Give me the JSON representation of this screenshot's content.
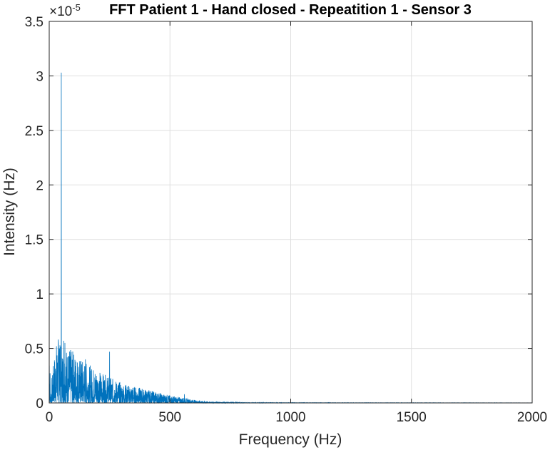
{
  "chart_data": {
    "type": "line",
    "title": "FFT Patient 1 - Hand closed - Repeatition 1 - Sensor 3",
    "xlabel": "Frequency (Hz)",
    "ylabel": "Intensity (Hz)",
    "y_exponent_base": "×10",
    "y_exponent_power": "-5",
    "xlim": [
      0,
      2000
    ],
    "ylim": [
      0,
      3.5
    ],
    "xticks": [
      0,
      500,
      1000,
      1500,
      2000
    ],
    "xtick_labels": [
      "0",
      "500",
      "1000",
      "1500",
      "2000"
    ],
    "yticks": [
      0,
      0.5,
      1,
      1.5,
      2,
      2.5,
      3,
      3.5
    ],
    "ytick_labels": [
      "0",
      "0.5",
      "1",
      "1.5",
      "2",
      "2.5",
      "3",
      "3.5"
    ],
    "grid": true,
    "series": [
      {
        "color": "#0072BD",
        "envelope_x": [
          0,
          5,
          10,
          20,
          30,
          40,
          50,
          60,
          80,
          100,
          125,
          150,
          175,
          200,
          225,
          250,
          275,
          300,
          350,
          400,
          450,
          500,
          550,
          600,
          650,
          700,
          800,
          1000,
          1500,
          2000
        ],
        "envelope_y": [
          0.68,
          0.05,
          0.15,
          0.3,
          0.4,
          0.45,
          0.35,
          0.38,
          0.36,
          0.34,
          0.3,
          0.27,
          0.24,
          0.22,
          0.19,
          0.17,
          0.15,
          0.13,
          0.11,
          0.09,
          0.07,
          0.05,
          0.035,
          0.02,
          0.01,
          0.006,
          0.003,
          0.002,
          0.0015,
          0.001
        ],
        "peaks": [
          {
            "x": 50,
            "y": 3.03
          },
          {
            "x": 250,
            "y": 0.47
          },
          {
            "x": 60,
            "y": 0.57
          },
          {
            "x": 42,
            "y": 0.5
          },
          {
            "x": 65,
            "y": 0.55
          },
          {
            "x": 150,
            "y": 0.4
          },
          {
            "x": 560,
            "y": 0.08
          }
        ]
      }
    ]
  }
}
